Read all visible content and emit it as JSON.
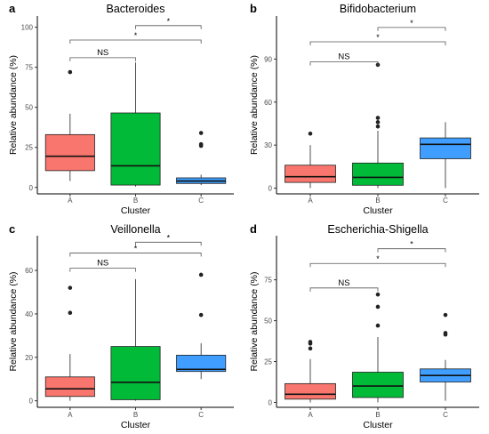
{
  "figure": {
    "colors": {
      "A": "#F8766D",
      "B": "#00BA38",
      "C": "#3F9EFF",
      "outline": "#111111"
    },
    "panel_labels": [
      "a",
      "b",
      "c",
      "d"
    ]
  },
  "chart_data": [
    {
      "panel": "a",
      "type": "box",
      "title": "Bacteroides",
      "xlabel": "Cluster",
      "ylabel": "Relative abundance (%)",
      "categories": [
        "A",
        "B",
        "C"
      ],
      "ylim": [
        -4,
        107
      ],
      "yticks": [
        0,
        25,
        50,
        75,
        100
      ],
      "boxes": [
        {
          "group": "A",
          "whisker_low": 4,
          "q1": 10.5,
          "median": 19.5,
          "q3": 33,
          "whisker_high": 46,
          "outliers": [
            72
          ]
        },
        {
          "group": "B",
          "whisker_low": 0.5,
          "q1": 1.5,
          "median": 13.5,
          "q3": 46.5,
          "whisker_high": 78,
          "outliers": []
        },
        {
          "group": "C",
          "whisker_low": 1.5,
          "q1": 2.5,
          "median": 4,
          "q3": 6,
          "whisker_high": 8,
          "outliers": [
            26,
            27,
            34
          ]
        }
      ],
      "comparisons": [
        {
          "from": "A",
          "to": "B",
          "label": "NS",
          "y": 81
        },
        {
          "from": "A",
          "to": "C",
          "label": "*",
          "y": 92
        },
        {
          "from": "B",
          "to": "C",
          "label": "*",
          "y": 101
        }
      ]
    },
    {
      "panel": "b",
      "type": "box",
      "title": "Bifidobacterium",
      "xlabel": "Cluster",
      "ylabel": "Relative abundance (%)",
      "categories": [
        "A",
        "B",
        "C"
      ],
      "ylim": [
        -4,
        120
      ],
      "yticks": [
        0,
        30,
        60,
        90
      ],
      "boxes": [
        {
          "group": "A",
          "whisker_low": 0,
          "q1": 4,
          "median": 8,
          "q3": 16,
          "whisker_high": 30,
          "outliers": [
            38
          ]
        },
        {
          "group": "B",
          "whisker_low": 0,
          "q1": 2,
          "median": 7.5,
          "q3": 17.5,
          "whisker_high": 40,
          "outliers": [
            43,
            46,
            49,
            86
          ]
        },
        {
          "group": "C",
          "whisker_low": 0,
          "q1": 20.5,
          "median": 30.5,
          "q3": 35,
          "whisker_high": 46,
          "outliers": []
        }
      ],
      "comparisons": [
        {
          "from": "A",
          "to": "B",
          "label": "NS",
          "y": 88
        },
        {
          "from": "A",
          "to": "C",
          "label": "*",
          "y": 102
        },
        {
          "from": "B",
          "to": "C",
          "label": "*",
          "y": 112
        }
      ]
    },
    {
      "panel": "c",
      "type": "box",
      "title": "Veillonella",
      "xlabel": "Cluster",
      "ylabel": "Relative abundance (%)",
      "categories": [
        "A",
        "B",
        "C"
      ],
      "ylim": [
        -3,
        76
      ],
      "yticks": [
        0,
        20,
        40,
        60
      ],
      "boxes": [
        {
          "group": "A",
          "whisker_low": 0,
          "q1": 2,
          "median": 5.5,
          "q3": 11,
          "whisker_high": 21.5,
          "outliers": [
            40.5,
            52
          ]
        },
        {
          "group": "B",
          "whisker_low": 0,
          "q1": 0.5,
          "median": 8.5,
          "q3": 25,
          "whisker_high": 56,
          "outliers": []
        },
        {
          "group": "C",
          "whisker_low": 10,
          "q1": 13.5,
          "median": 14.5,
          "q3": 21,
          "whisker_high": 26.5,
          "outliers": [
            39.5,
            58
          ]
        }
      ],
      "comparisons": [
        {
          "from": "A",
          "to": "B",
          "label": "NS",
          "y": 61
        },
        {
          "from": "A",
          "to": "C",
          "label": "*",
          "y": 68
        },
        {
          "from": "B",
          "to": "C",
          "label": "*",
          "y": 73
        }
      ]
    },
    {
      "panel": "d",
      "type": "box",
      "title": "Escherichia-Shigella",
      "xlabel": "Cluster",
      "ylabel": "Relative abundance (%)",
      "categories": [
        "A",
        "B",
        "C"
      ],
      "ylim": [
        -3,
        102
      ],
      "yticks": [
        0,
        25,
        50,
        75
      ],
      "boxes": [
        {
          "group": "A",
          "whisker_low": 0,
          "q1": 2,
          "median": 5,
          "q3": 11.5,
          "whisker_high": 26.5,
          "outliers": [
            33,
            36,
            37
          ]
        },
        {
          "group": "B",
          "whisker_low": 0,
          "q1": 3,
          "median": 10,
          "q3": 18.5,
          "whisker_high": 40,
          "outliers": [
            47,
            58.5,
            66
          ]
        },
        {
          "group": "C",
          "whisker_low": 1,
          "q1": 12.5,
          "median": 16.5,
          "q3": 20.5,
          "whisker_high": 26,
          "outliers": [
            41.5,
            42.5,
            53.5
          ]
        }
      ],
      "comparisons": [
        {
          "from": "A",
          "to": "B",
          "label": "NS",
          "y": 70
        },
        {
          "from": "A",
          "to": "C",
          "label": "*",
          "y": 85
        },
        {
          "from": "B",
          "to": "C",
          "label": "*",
          "y": 94
        }
      ]
    }
  ]
}
